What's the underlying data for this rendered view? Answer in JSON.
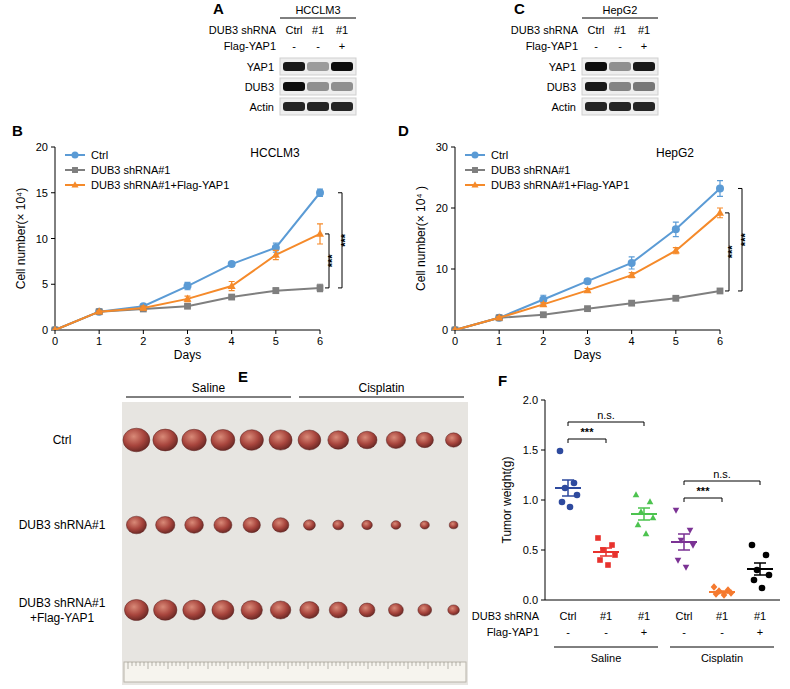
{
  "panel_letters": [
    "A",
    "B",
    "C",
    "D",
    "E",
    "F"
  ],
  "blots": [
    {
      "cell_line": "HCCLM3",
      "row_labels": [
        "DUB3 shRNA",
        "Flag-YAP1"
      ],
      "lanes": [
        [
          "Ctrl",
          "#1",
          "#1"
        ],
        [
          "-",
          "-",
          "+"
        ]
      ],
      "bands": [
        {
          "name": "YAP1",
          "intensity": [
            0.9,
            0.35,
            0.95
          ]
        },
        {
          "name": "DUB3",
          "intensity": [
            0.95,
            0.4,
            0.4
          ]
        },
        {
          "name": "Actin",
          "intensity": [
            0.85,
            0.85,
            0.85
          ]
        }
      ]
    },
    {
      "cell_line": "HepG2",
      "row_labels": [
        "DUB3 shRNA",
        "Flag-YAP1"
      ],
      "lanes": [
        [
          "Ctrl",
          "#1",
          "#1"
        ],
        [
          "-",
          "-",
          "+"
        ]
      ],
      "bands": [
        {
          "name": "YAP1",
          "intensity": [
            0.95,
            0.4,
            0.9
          ]
        },
        {
          "name": "DUB3",
          "intensity": [
            0.9,
            0.45,
            0.5
          ]
        },
        {
          "name": "Actin",
          "intensity": [
            0.85,
            0.85,
            0.85
          ]
        }
      ]
    }
  ],
  "photo": {
    "headers": [
      "Saline",
      "Cisplatin"
    ],
    "row_labels": [
      "Ctrl",
      "DUB3 shRNA#1",
      "DUB3 shRNA#1+Flag-YAP1"
    ]
  },
  "chart_data": [
    {
      "type": "line",
      "title": "HCCLM3",
      "x": [
        0,
        1,
        2,
        3,
        4,
        5,
        6
      ],
      "x_label": "Days",
      "y_label": "Cell number(× 10⁴)",
      "xlim": [
        0,
        6
      ],
      "ylim": [
        0,
        20
      ],
      "xticks": [
        0,
        1,
        2,
        3,
        4,
        5,
        6
      ],
      "yticks": [
        0,
        5,
        10,
        15,
        20
      ],
      "legend": "top-left",
      "series": [
        {
          "name": "Ctrl",
          "color": "#5b9bd5",
          "marker": "circle",
          "values": [
            0,
            2,
            2.6,
            4.8,
            7.2,
            9,
            15
          ],
          "errors": [
            0,
            0.1,
            0.15,
            0.4,
            0.2,
            0.5,
            0.4
          ]
        },
        {
          "name": "DUB3 shRNA#1",
          "color": "#7f7f7f",
          "marker": "square",
          "values": [
            0,
            2,
            2.3,
            2.6,
            3.6,
            4.3,
            4.6
          ],
          "errors": [
            0,
            0.1,
            0.1,
            0.15,
            0.2,
            0.3,
            0.4
          ]
        },
        {
          "name": "DUB3 shRNA#1+Flag-YAP1",
          "color": "#f58a2a",
          "marker": "triangle",
          "values": [
            0,
            2,
            2.4,
            3.4,
            4.8,
            8.2,
            10.5
          ],
          "errors": [
            0,
            0.1,
            0.2,
            0.3,
            0.5,
            0.5,
            1.1
          ]
        }
      ],
      "annotations": [
        {
          "text": "***",
          "series": [
            2,
            1
          ]
        },
        {
          "text": "***",
          "series": [
            0,
            1
          ]
        }
      ]
    },
    {
      "type": "line",
      "title": "HepG2",
      "x": [
        0,
        1,
        2,
        3,
        4,
        5,
        6
      ],
      "x_label": "Days",
      "y_label": "Cell number(× 10⁴ )",
      "xlim": [
        0,
        6
      ],
      "ylim": [
        0,
        30
      ],
      "xticks": [
        0,
        1,
        2,
        3,
        4,
        5,
        6
      ],
      "yticks": [
        0,
        10,
        20,
        30
      ],
      "legend": "top-left",
      "series": [
        {
          "name": "Ctrl",
          "color": "#5b9bd5",
          "marker": "circle",
          "values": [
            0,
            2,
            5,
            8,
            11,
            16.5,
            23.2
          ],
          "errors": [
            0,
            0.2,
            0.7,
            0.4,
            1,
            1.2,
            1.3
          ]
        },
        {
          "name": "DUB3 shRNA#1",
          "color": "#7f7f7f",
          "marker": "square",
          "values": [
            0,
            2,
            2.5,
            3.5,
            4.4,
            5.2,
            6.4
          ],
          "errors": [
            0,
            0.2,
            0.2,
            0.2,
            0.3,
            0.3,
            0.4
          ]
        },
        {
          "name": "DUB3 shRNA#1+Flag-YAP1",
          "color": "#f58a2a",
          "marker": "triangle",
          "values": [
            0,
            2,
            4.2,
            6.5,
            9,
            13,
            19.2
          ],
          "errors": [
            0,
            0.2,
            0.3,
            0.3,
            0.4,
            0.5,
            0.8
          ]
        }
      ],
      "annotations": [
        {
          "text": "***",
          "series": [
            2,
            1
          ]
        },
        {
          "text": "***",
          "series": [
            0,
            1
          ]
        }
      ]
    },
    {
      "type": "dot",
      "y_label": "Tumor weight(g)",
      "ylim": [
        0,
        2
      ],
      "yticks": [
        {
          "value": 0,
          "label": "0.0"
        },
        0.5,
        {
          "value": 1,
          "label": "1.0"
        },
        1.5,
        {
          "value": 2,
          "label": "2.0"
        }
      ],
      "categories": [
        "Ctrl",
        "#1",
        "#1",
        "Ctrl",
        "#1",
        "#1"
      ],
      "flag_yap1": [
        "-",
        "-",
        "+",
        "-",
        "-",
        "+"
      ],
      "row_labels": [
        "DUB3 shRNA",
        "Flag-YAP1"
      ],
      "groups": [
        {
          "label": "Saline",
          "categories": [
            0,
            1,
            2
          ]
        },
        {
          "label": "Cisplatin",
          "categories": [
            3,
            4,
            5
          ]
        }
      ],
      "series": [
        {
          "color": "#2e4a9e",
          "marker": "circle",
          "values": [
            1.49,
            1.17,
            1.12,
            1.05,
            0.98,
            0.93
          ],
          "mean": 1.12,
          "sem": 0.08
        },
        {
          "color": "#e8322d",
          "marker": "square",
          "values": [
            0.62,
            0.55,
            0.5,
            0.45,
            0.4,
            0.35
          ],
          "mean": 0.48,
          "sem": 0.04
        },
        {
          "color": "#4cc34f",
          "marker": "triangle",
          "values": [
            1.05,
            0.98,
            0.88,
            0.82,
            0.75,
            0.66
          ],
          "mean": 0.86,
          "sem": 0.06
        },
        {
          "color": "#7b3294",
          "marker": "inverted-triangle",
          "values": [
            0.9,
            0.7,
            0.6,
            0.55,
            0.4,
            0.33
          ],
          "mean": 0.58,
          "sem": 0.08
        },
        {
          "color": "#f57a2f",
          "marker": "diamond",
          "values": [
            0.13,
            0.1,
            0.09,
            0.07,
            0.06,
            0.05
          ],
          "mean": 0.08,
          "sem": 0.01
        },
        {
          "color": "#000000",
          "marker": "circle",
          "values": [
            0.55,
            0.45,
            0.3,
            0.25,
            0.2,
            0.12
          ],
          "mean": 0.31,
          "sem": 0.06
        }
      ],
      "annotations": [
        {
          "text": "***",
          "categories": [
            0,
            1
          ]
        },
        {
          "text": "n.s.",
          "categories": [
            0,
            2
          ]
        },
        {
          "text": "***",
          "categories": [
            3,
            4
          ]
        },
        {
          "text": "n.s.",
          "categories": [
            3,
            5
          ]
        }
      ]
    }
  ]
}
